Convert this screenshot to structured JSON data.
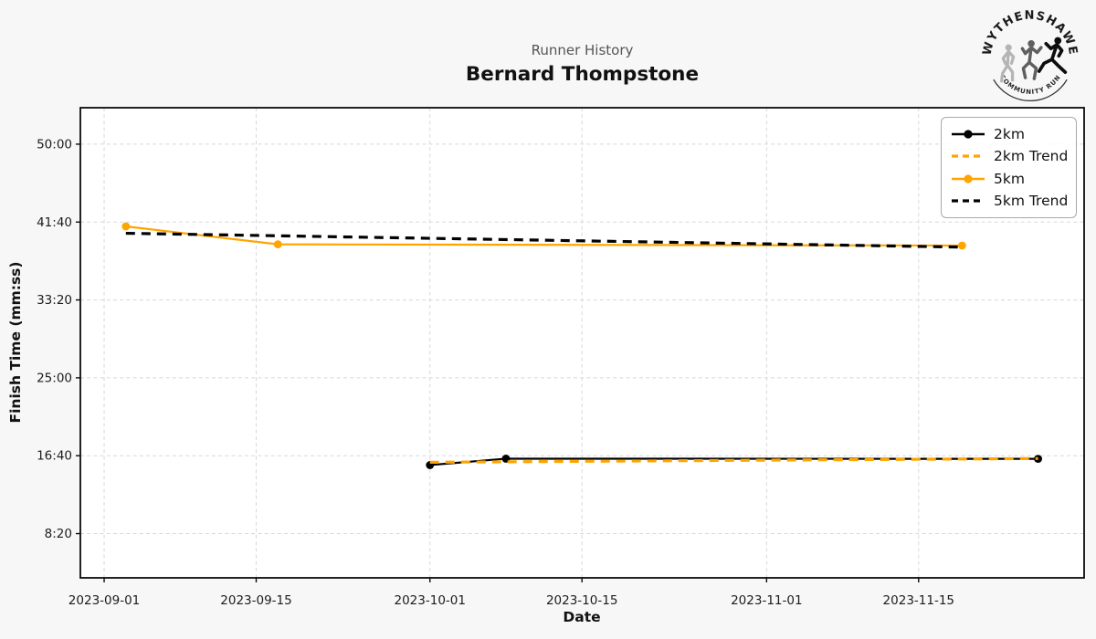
{
  "header": {
    "subtitle": "Runner History",
    "title": "Bernard Thompstone"
  },
  "logo": {
    "line1": "WYTHENSHAWE",
    "line2": "COMMUNITY RUN"
  },
  "chart_data": {
    "type": "line",
    "title": "Bernard Thompstone",
    "subtitle": "Runner History",
    "xlabel": "Date",
    "ylabel": "Finish Time (mm:ss)",
    "grid": true,
    "legend_position": "upper right",
    "x_axis": {
      "origin": "2023-09-01",
      "domain_days": [
        -2.19,
        90.24
      ],
      "ticks": [
        "2023-09-01",
        "2023-09-15",
        "2023-10-01",
        "2023-10-15",
        "2023-11-01",
        "2023-11-15"
      ]
    },
    "y_axis": {
      "domain_seconds": [
        216,
        3234
      ],
      "ticks": [
        {
          "label": "50:00",
          "seconds": 3000
        },
        {
          "label": "41:40",
          "seconds": 2500
        },
        {
          "label": "33:20",
          "seconds": 2000
        },
        {
          "label": "25:00",
          "seconds": 1500
        },
        {
          "label": "16:40",
          "seconds": 1000
        },
        {
          "label": "8:20",
          "seconds": 500
        }
      ]
    },
    "series": [
      {
        "name": "2km",
        "color": "#000000",
        "style": "solid",
        "marker": true,
        "width": 2.2,
        "points": [
          {
            "date": "2023-10-01",
            "time": "15:40",
            "seconds": 940
          },
          {
            "date": "2023-10-08",
            "time": "16:21",
            "seconds": 981
          },
          {
            "date": "2023-11-26",
            "time": "16:20",
            "seconds": 980
          }
        ]
      },
      {
        "name": "2km Trend",
        "color": "#FFA500",
        "style": "dashed",
        "marker": false,
        "width": 3.2,
        "points": [
          {
            "date": "2023-10-01",
            "seconds": 958
          },
          {
            "date": "2023-11-26",
            "seconds": 982
          }
        ]
      },
      {
        "name": "5km",
        "color": "#FFA500",
        "style": "solid",
        "marker": true,
        "width": 2.2,
        "points": [
          {
            "date": "2023-09-03",
            "time": "41:12",
            "seconds": 2472
          },
          {
            "date": "2023-09-17",
            "time": "39:17",
            "seconds": 2357
          },
          {
            "date": "2023-11-19",
            "time": "39:09",
            "seconds": 2349
          }
        ]
      },
      {
        "name": "5km Trend",
        "color": "#000000",
        "style": "dashed",
        "marker": false,
        "width": 3.2,
        "points": [
          {
            "date": "2023-09-03",
            "seconds": 2428
          },
          {
            "date": "2023-11-19",
            "seconds": 2339
          }
        ]
      }
    ],
    "colors": {
      "orange": "#FFA500",
      "black": "#000000",
      "grid": "#d8d8d8",
      "figure_bg": "#f7f7f7",
      "plot_bg": "#ffffff",
      "subtitle_text": "#555555"
    }
  }
}
